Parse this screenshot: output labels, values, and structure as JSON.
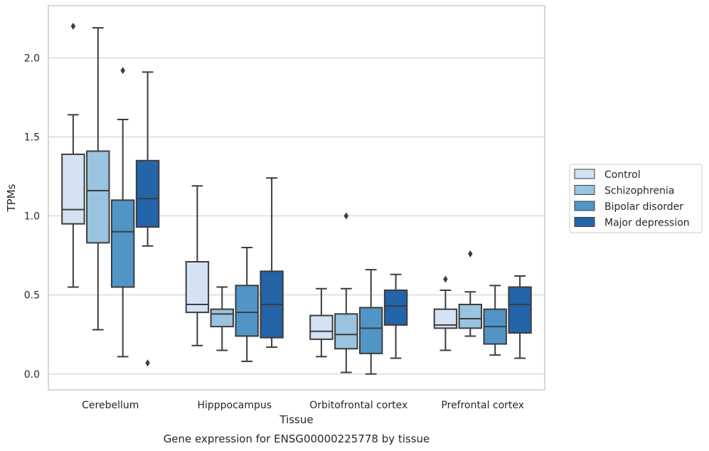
{
  "chart_data": {
    "type": "box",
    "title": "",
    "caption": "Gene expression for ENSG00000225778 by tissue",
    "xlabel": "Tissue",
    "ylabel": "TPMs",
    "ylim": [
      -0.1,
      2.33
    ],
    "yticks": [
      0.0,
      0.5,
      1.0,
      1.5,
      2.0
    ],
    "ytick_labels": [
      "0.0",
      "0.5",
      "1.0",
      "1.5",
      "2.0"
    ],
    "grid": "horizontal",
    "legend_position": "right",
    "categories": [
      "Cerebellum",
      "Hipppocampus",
      "Orbitofrontal cortex",
      "Prefrontal cortex"
    ],
    "series": [
      {
        "name": "Control",
        "color": "#d3e3f3",
        "boxes": [
          {
            "whislo": 0.55,
            "q1": 0.95,
            "med": 1.04,
            "q3": 1.39,
            "whishi": 1.64,
            "fliers": [
              2.2
            ]
          },
          {
            "whislo": 0.18,
            "q1": 0.39,
            "med": 0.44,
            "q3": 0.71,
            "whishi": 1.19,
            "fliers": []
          },
          {
            "whislo": 0.11,
            "q1": 0.22,
            "med": 0.27,
            "q3": 0.37,
            "whishi": 0.54,
            "fliers": []
          },
          {
            "whislo": 0.15,
            "q1": 0.29,
            "med": 0.31,
            "q3": 0.41,
            "whishi": 0.53,
            "fliers": [
              0.6
            ]
          }
        ]
      },
      {
        "name": "Schizophrenia",
        "color": "#9ac3df",
        "boxes": [
          {
            "whislo": 0.28,
            "q1": 0.83,
            "med": 1.16,
            "q3": 1.41,
            "whishi": 2.19,
            "fliers": []
          },
          {
            "whislo": 0.15,
            "q1": 0.3,
            "med": 0.38,
            "q3": 0.41,
            "whishi": 0.55,
            "fliers": []
          },
          {
            "whislo": 0.01,
            "q1": 0.16,
            "med": 0.25,
            "q3": 0.38,
            "whishi": 0.54,
            "fliers": [
              1.0
            ]
          },
          {
            "whislo": 0.24,
            "q1": 0.29,
            "med": 0.35,
            "q3": 0.44,
            "whishi": 0.52,
            "fliers": [
              0.76
            ]
          }
        ]
      },
      {
        "name": "Bipolar disorder",
        "color": "#5195c7",
        "boxes": [
          {
            "whislo": 0.11,
            "q1": 0.55,
            "med": 0.9,
            "q3": 1.1,
            "whishi": 1.61,
            "fliers": [
              1.92
            ]
          },
          {
            "whislo": 0.08,
            "q1": 0.24,
            "med": 0.39,
            "q3": 0.56,
            "whishi": 0.8,
            "fliers": []
          },
          {
            "whislo": 0.0,
            "q1": 0.13,
            "med": 0.29,
            "q3": 0.42,
            "whishi": 0.66,
            "fliers": []
          },
          {
            "whislo": 0.12,
            "q1": 0.19,
            "med": 0.3,
            "q3": 0.41,
            "whishi": 0.56,
            "fliers": []
          }
        ]
      },
      {
        "name": "Major depression",
        "color": "#2464a8",
        "boxes": [
          {
            "whislo": 0.81,
            "q1": 0.93,
            "med": 1.11,
            "q3": 1.35,
            "whishi": 1.91,
            "fliers": [
              0.07
            ]
          },
          {
            "whislo": 0.17,
            "q1": 0.23,
            "med": 0.44,
            "q3": 0.65,
            "whishi": 1.24,
            "fliers": []
          },
          {
            "whislo": 0.1,
            "q1": 0.31,
            "med": 0.43,
            "q3": 0.53,
            "whishi": 0.63,
            "fliers": []
          },
          {
            "whislo": 0.1,
            "q1": 0.26,
            "med": 0.44,
            "q3": 0.55,
            "whishi": 0.62,
            "fliers": []
          }
        ]
      }
    ]
  }
}
